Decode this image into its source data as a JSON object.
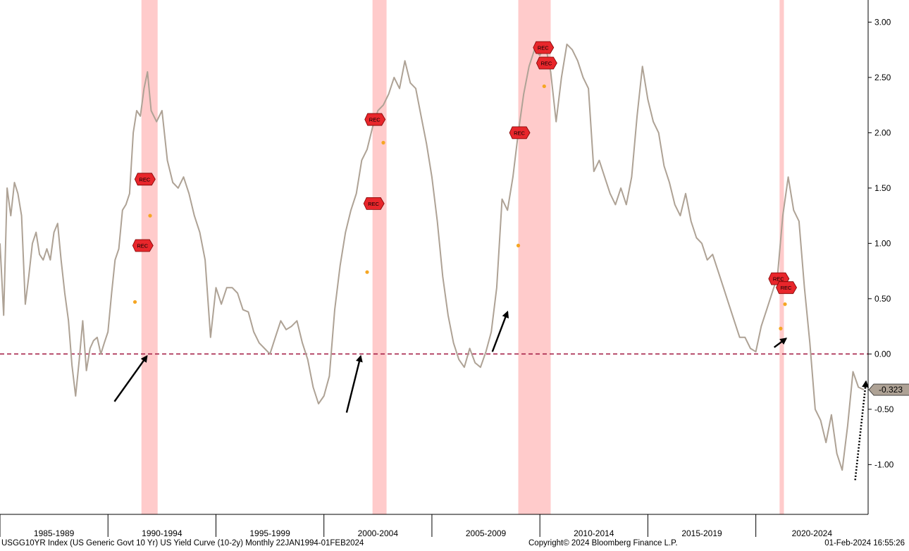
{
  "chart_data": {
    "type": "line",
    "title": "",
    "xlabel": "",
    "ylabel": "",
    "x_range": [
      1984.0,
      2024.2
    ],
    "ylim": [
      -1.45,
      3.2
    ],
    "y_ticks": [
      {
        "value": 3.0,
        "label": "3.00"
      },
      {
        "value": 2.5,
        "label": "2.50"
      },
      {
        "value": 2.0,
        "label": "2.00"
      },
      {
        "value": 1.5,
        "label": "1.50"
      },
      {
        "value": 1.0,
        "label": "1.00"
      },
      {
        "value": 0.5,
        "label": "0.50"
      },
      {
        "value": 0.0,
        "label": "0.00"
      },
      {
        "value": -0.5,
        "label": "-0.50"
      },
      {
        "value": -1.0,
        "label": "-1.00"
      }
    ],
    "x_categories": [
      {
        "label": "1985-1989",
        "start": 1984.0,
        "end": 1989.0
      },
      {
        "label": "1990-1994",
        "start": 1989.0,
        "end": 1994.0
      },
      {
        "label": "1995-1999",
        "start": 1994.0,
        "end": 1999.0
      },
      {
        "label": "2000-2004",
        "start": 1999.0,
        "end": 2004.0
      },
      {
        "label": "2005-2009",
        "start": 2004.0,
        "end": 2009.0
      },
      {
        "label": "2010-2014",
        "start": 2009.0,
        "end": 2014.0
      },
      {
        "label": "2015-2019",
        "start": 2014.0,
        "end": 2019.0
      },
      {
        "label": "2020-2024",
        "start": 2019.0,
        "end": 2024.2
      }
    ],
    "zero_line": 0.0,
    "last_value_label": "-0.323",
    "last_value": -0.323,
    "grid": false,
    "recession_bands": [
      {
        "start": 1990.55,
        "end": 1991.3
      },
      {
        "start": 2001.25,
        "end": 2001.9
      },
      {
        "start": 2008.0,
        "end": 2009.5
      },
      {
        "start": 2020.1,
        "end": 2020.3
      }
    ],
    "rec_markers": [
      {
        "x": 1990.6,
        "y": 0.98,
        "label": "REC"
      },
      {
        "x": 1990.7,
        "y": 1.58,
        "label": "REC"
      },
      {
        "x": 2001.3,
        "y": 1.36,
        "label": "REC"
      },
      {
        "x": 2001.35,
        "y": 2.12,
        "label": "REC"
      },
      {
        "x": 2008.05,
        "y": 2.0,
        "label": "REC"
      },
      {
        "x": 2009.15,
        "y": 2.77,
        "label": "REC"
      },
      {
        "x": 2009.3,
        "y": 2.63,
        "label": "REC"
      },
      {
        "x": 2020.05,
        "y": 0.68,
        "label": "REC"
      },
      {
        "x": 2020.4,
        "y": 0.6,
        "label": "REC"
      }
    ],
    "signal_points": [
      {
        "x": 1990.25,
        "y": 0.47
      },
      {
        "x": 1990.95,
        "y": 1.25
      },
      {
        "x": 2001.0,
        "y": 0.74
      },
      {
        "x": 2001.75,
        "y": 1.91
      },
      {
        "x": 2008.0,
        "y": 0.98
      },
      {
        "x": 2009.2,
        "y": 2.42
      },
      {
        "x": 2020.15,
        "y": 0.23
      },
      {
        "x": 2020.35,
        "y": 0.45
      }
    ],
    "arrows": [
      {
        "x1": 1989.3,
        "y1": -0.43,
        "x2": 1990.8,
        "y2": -0.02
      },
      {
        "x1": 2000.05,
        "y1": -0.53,
        "x2": 2000.7,
        "y2": -0.02
      },
      {
        "x1": 2006.8,
        "y1": 0.02,
        "x2": 2007.5,
        "y2": 0.38
      },
      {
        "x1": 2019.85,
        "y1": 0.06,
        "x2": 2020.4,
        "y2": 0.14
      }
    ],
    "projection": {
      "x1": 2023.6,
      "y1": -1.14,
      "x2": 2024.1,
      "y2": -0.25
    },
    "series": [
      {
        "name": "",
        "color": "#aea295",
        "x": [
          1984.0,
          1984.17,
          1984.33,
          1984.5,
          1984.67,
          1984.83,
          1985.0,
          1985.17,
          1985.33,
          1985.5,
          1985.67,
          1985.83,
          1986.0,
          1986.17,
          1986.33,
          1986.5,
          1986.67,
          1986.83,
          1987.0,
          1987.17,
          1987.33,
          1987.5,
          1987.67,
          1987.83,
          1988.0,
          1988.17,
          1988.33,
          1988.5,
          1988.67,
          1988.83,
          1989.0,
          1989.17,
          1989.33,
          1989.5,
          1989.67,
          1989.83,
          1990.0,
          1990.17,
          1990.33,
          1990.5,
          1990.67,
          1990.83,
          1991.0,
          1991.25,
          1991.5,
          1991.75,
          1992.0,
          1992.25,
          1992.5,
          1992.75,
          1993.0,
          1993.25,
          1993.5,
          1993.75,
          1994.0,
          1994.25,
          1994.5,
          1994.75,
          1995.0,
          1995.25,
          1995.5,
          1995.75,
          1996.0,
          1996.25,
          1996.5,
          1996.75,
          1997.0,
          1997.25,
          1997.5,
          1997.75,
          1998.0,
          1998.25,
          1998.5,
          1998.75,
          1999.0,
          1999.25,
          1999.5,
          1999.75,
          2000.0,
          2000.25,
          2000.5,
          2000.75,
          2001.0,
          2001.25,
          2001.5,
          2001.75,
          2002.0,
          2002.25,
          2002.5,
          2002.75,
          2003.0,
          2003.25,
          2003.5,
          2003.75,
          2004.0,
          2004.25,
          2004.5,
          2004.75,
          2005.0,
          2005.25,
          2005.5,
          2005.75,
          2006.0,
          2006.25,
          2006.5,
          2006.75,
          2007.0,
          2007.25,
          2007.5,
          2007.75,
          2008.0,
          2008.25,
          2008.5,
          2008.75,
          2009.0,
          2009.25,
          2009.5,
          2009.75,
          2010.0,
          2010.25,
          2010.5,
          2010.75,
          2011.0,
          2011.25,
          2011.5,
          2011.75,
          2012.0,
          2012.25,
          2012.5,
          2012.75,
          2013.0,
          2013.25,
          2013.5,
          2013.75,
          2014.0,
          2014.25,
          2014.5,
          2014.75,
          2015.0,
          2015.25,
          2015.5,
          2015.75,
          2016.0,
          2016.25,
          2016.5,
          2016.75,
          2017.0,
          2017.25,
          2017.5,
          2017.75,
          2018.0,
          2018.25,
          2018.5,
          2018.75,
          2019.0,
          2019.25,
          2019.5,
          2019.75,
          2020.0,
          2020.25,
          2020.5,
          2020.75,
          2021.0,
          2021.25,
          2021.5,
          2021.75,
          2022.0,
          2022.25,
          2022.5,
          2022.75,
          2023.0,
          2023.25,
          2023.5,
          2023.75,
          2024.0
        ],
        "y": [
          1.0,
          0.35,
          1.5,
          1.25,
          1.55,
          1.45,
          1.25,
          0.45,
          0.7,
          1.0,
          1.1,
          0.9,
          0.85,
          0.95,
          0.85,
          1.1,
          1.18,
          0.85,
          0.55,
          0.3,
          -0.1,
          -0.38,
          -0.05,
          0.3,
          -0.15,
          0.05,
          0.12,
          0.15,
          0.0,
          0.1,
          0.2,
          0.55,
          0.85,
          0.95,
          1.3,
          1.35,
          1.45,
          2.0,
          2.2,
          2.15,
          2.4,
          2.55,
          2.2,
          2.1,
          2.2,
          1.75,
          1.55,
          1.5,
          1.6,
          1.45,
          1.25,
          1.1,
          0.85,
          0.15,
          0.6,
          0.45,
          0.6,
          0.6,
          0.55,
          0.4,
          0.38,
          0.2,
          0.1,
          0.05,
          0.0,
          0.15,
          0.3,
          0.22,
          0.25,
          0.3,
          0.1,
          -0.05,
          -0.3,
          -0.45,
          -0.38,
          -0.2,
          0.4,
          0.8,
          1.1,
          1.3,
          1.45,
          1.75,
          1.85,
          2.05,
          2.2,
          2.25,
          2.35,
          2.5,
          2.4,
          2.65,
          2.45,
          2.4,
          2.15,
          1.9,
          1.6,
          1.2,
          0.7,
          0.35,
          0.1,
          -0.05,
          -0.12,
          0.05,
          -0.08,
          -0.12,
          0.02,
          0.2,
          0.6,
          1.4,
          1.3,
          1.6,
          2.0,
          2.35,
          2.6,
          2.75,
          2.7,
          2.8,
          2.55,
          2.1,
          2.5,
          2.8,
          2.75,
          2.65,
          2.5,
          2.4,
          1.65,
          1.75,
          1.6,
          1.45,
          1.35,
          1.5,
          1.35,
          1.6,
          2.15,
          2.6,
          2.3,
          2.1,
          2.0,
          1.7,
          1.55,
          1.35,
          1.25,
          1.45,
          1.2,
          1.05,
          1.0,
          0.85,
          0.9,
          0.75,
          0.6,
          0.45,
          0.3,
          0.15,
          0.15,
          0.05,
          0.02,
          0.25,
          0.4,
          0.55,
          0.7,
          1.25,
          1.6,
          1.3,
          1.2,
          0.6,
          0.1,
          -0.5,
          -0.6,
          -0.8,
          -0.55,
          -0.9,
          -1.05,
          -0.65,
          -0.16,
          -0.3,
          -0.323
        ]
      }
    ]
  },
  "footer": {
    "left": "USGG10YR Index (US Generic Govt 10 Yr) US Yield Curve (10-2y)  Monthly 22JAN1994-01FEB2024",
    "center": "Copyright© 2024 Bloomberg Finance L.P.",
    "right": "01-Feb-2024 16:55:26"
  },
  "colors": {
    "line": "#aea295",
    "recession": "#ffc8c8",
    "zero_line": "#a0153e",
    "rec_marker": "#e8262b",
    "signal": "#f5a623",
    "arrow": "#000000",
    "last_value_box": "#aea295"
  }
}
